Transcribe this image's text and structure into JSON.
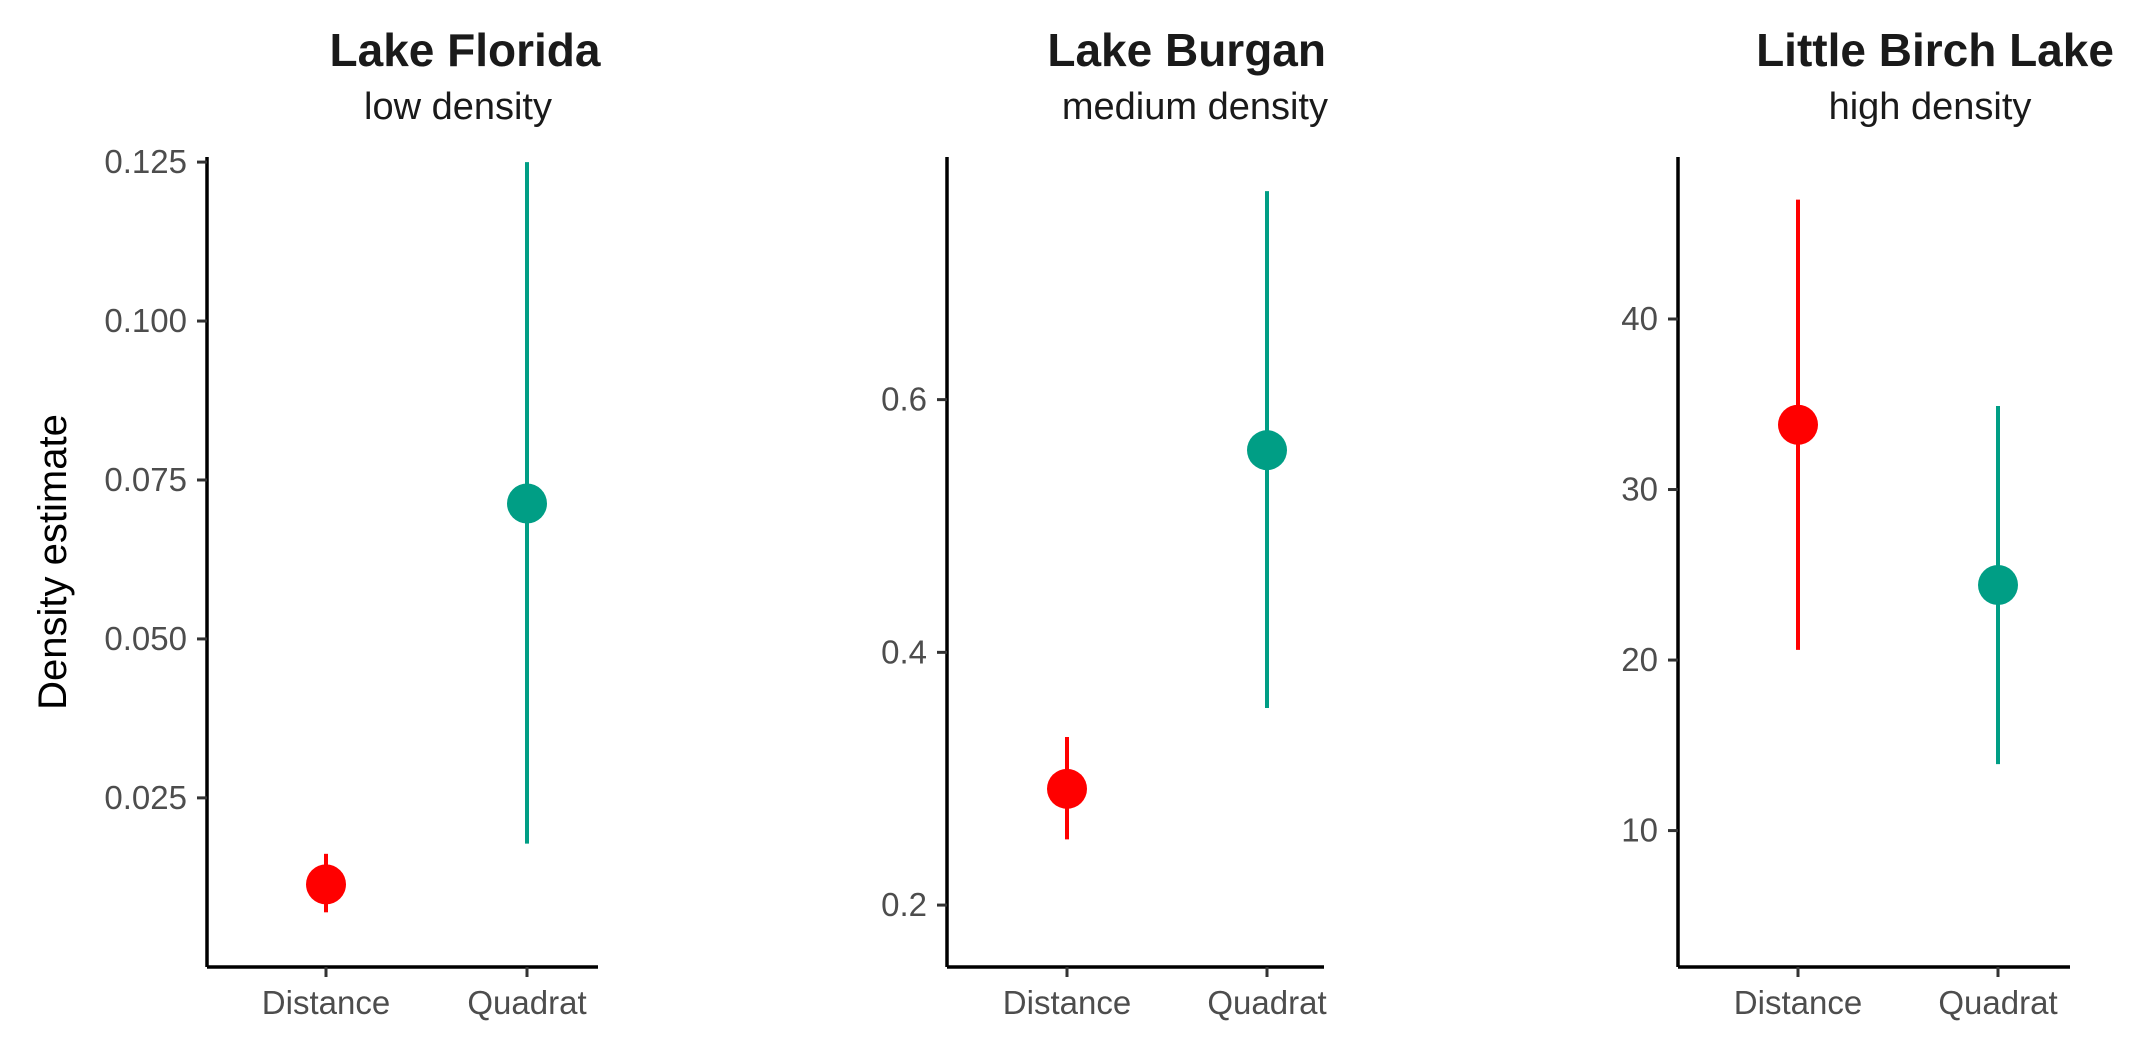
{
  "chart_data": [
    {
      "type": "scatter",
      "title": "Lake Florida",
      "subtitle": "low density",
      "ylabel": "Density estimate",
      "categories": [
        "Distance",
        "Quadrat"
      ],
      "yticks": [
        0.025,
        0.05,
        0.075,
        0.1,
        0.125
      ],
      "ytick_labels": [
        "0.025",
        "0.050",
        "0.075",
        "0.100",
        "0.125"
      ],
      "ylim": [
        -0.0016,
        0.1258
      ],
      "points": [
        {
          "category": "Distance",
          "estimate": 0.0114,
          "lower": 0.007,
          "upper": 0.0162,
          "color": "#ff0000"
        },
        {
          "category": "Quadrat",
          "estimate": 0.0713,
          "lower": 0.0178,
          "upper": 0.125,
          "color": "#009e85"
        }
      ],
      "grid": false,
      "legend": "none"
    },
    {
      "type": "scatter",
      "title": "Lake Burgan",
      "subtitle": "medium density",
      "ylabel": "",
      "categories": [
        "Distance",
        "Quadrat"
      ],
      "yticks": [
        0.2,
        0.4,
        0.6
      ],
      "ytick_labels": [
        "0.2",
        "0.4",
        "0.6"
      ],
      "ylim": [
        0.151,
        0.792
      ],
      "points": [
        {
          "category": "Distance",
          "estimate": 0.292,
          "lower": 0.252,
          "upper": 0.333,
          "color": "#ff0000"
        },
        {
          "category": "Quadrat",
          "estimate": 0.56,
          "lower": 0.356,
          "upper": 0.765,
          "color": "#009e85"
        }
      ],
      "grid": false,
      "legend": "none"
    },
    {
      "type": "scatter",
      "title": "Little Birch Lake",
      "subtitle": "high density",
      "ylabel": "",
      "categories": [
        "Distance",
        "Quadrat"
      ],
      "yticks": [
        10,
        20,
        30,
        40
      ],
      "ytick_labels": [
        "10",
        "20",
        "30",
        "40"
      ],
      "ylim": [
        2.0,
        49.5
      ],
      "points": [
        {
          "category": "Distance",
          "estimate": 33.8,
          "lower": 20.6,
          "upper": 47.0,
          "color": "#ff0000"
        },
        {
          "category": "Quadrat",
          "estimate": 24.4,
          "lower": 13.9,
          "upper": 34.9,
          "color": "#009e85"
        }
      ],
      "grid": false,
      "legend": "none"
    }
  ]
}
